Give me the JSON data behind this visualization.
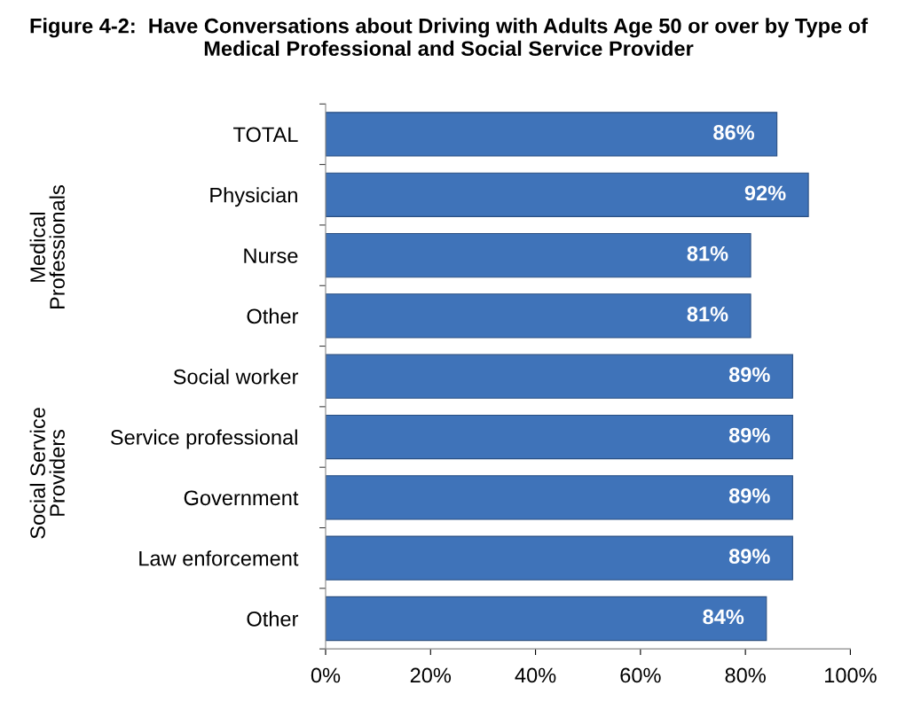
{
  "chart_data": {
    "type": "bar",
    "orientation": "horizontal",
    "title": "Figure 4-2:  Have Conversations about Driving with Adults Age 50 or over by Type of Medical Professional and Social Service Provider",
    "categories": [
      "TOTAL",
      "Physician",
      "Nurse",
      "Other",
      "Social worker",
      "Service professional",
      "Government",
      "Law enforcement",
      "Other"
    ],
    "values": [
      86,
      92,
      81,
      81,
      89,
      89,
      89,
      89,
      84
    ],
    "value_labels": [
      "86%",
      "92%",
      "81%",
      "81%",
      "89%",
      "89%",
      "89%",
      "89%",
      "84%"
    ],
    "color": "#3f73b9",
    "xlim": [
      0,
      100
    ],
    "xticks": [
      {
        "value": 0,
        "label": "0%"
      },
      {
        "value": 20,
        "label": "20%"
      },
      {
        "value": 40,
        "label": "40%"
      },
      {
        "value": 60,
        "label": "60%"
      },
      {
        "value": 80,
        "label": "80%"
      },
      {
        "value": 100,
        "label": "100%"
      }
    ],
    "annotations": [
      "Medical\nProfessionals",
      "Social Service\nProviders"
    ],
    "grid": false,
    "legend": false
  }
}
